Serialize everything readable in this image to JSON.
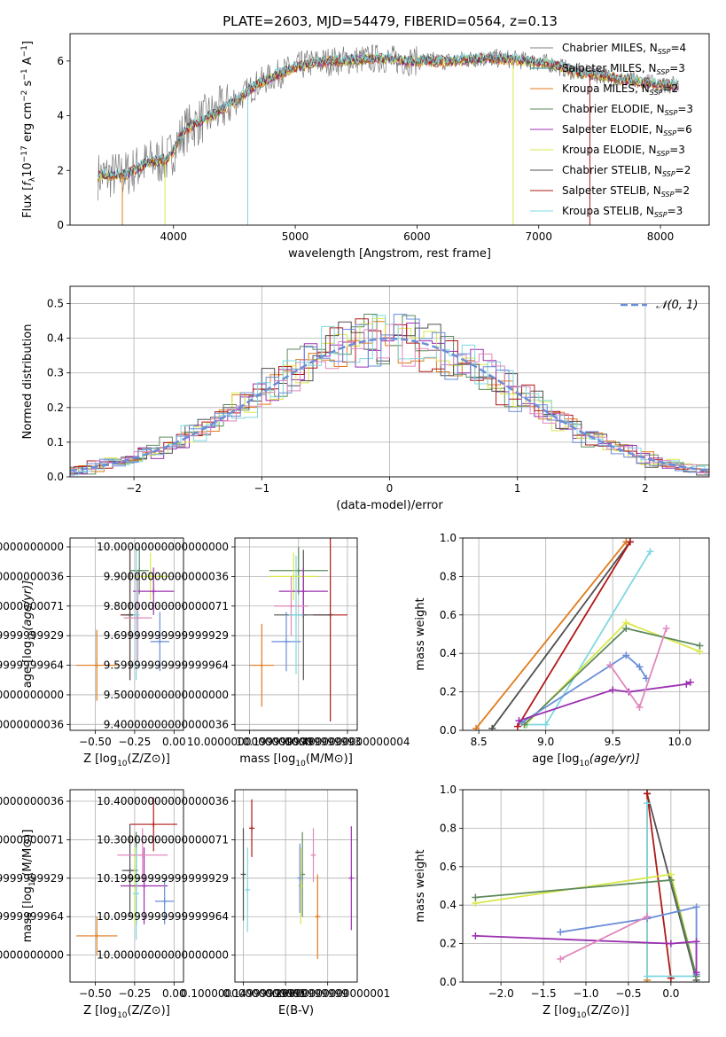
{
  "figure": {
    "title": "PLATE=2603, MJD=54479, FIBERID=0564, z=0.13"
  },
  "series_colors": {
    "Chabrier MILES": "#808080",
    "Salpeter MILES": "#2a8c8c",
    "Kroupa MILES": "#e07b1a",
    "Chabrier ELODIE": "#5f8a5f",
    "Salpeter ELODIE": "#9b30b0",
    "Kroupa ELODIE": "#d8e84a",
    "Chabrier STELIB": "#505050",
    "Salpeter STELIB": "#b01818",
    "Kroupa STELIB": "#7fd8e0",
    "extra_blue": "#6a8ed8",
    "extra_pink": "#e088bc",
    "gaussian": "#6a8ed8"
  },
  "chart_data": [
    {
      "id": "spectrum",
      "type": "line",
      "xlabel": "wavelength [Angstrom, rest frame]",
      "ylabel_parts": [
        "Flux [",
        "f",
        "λ",
        "10",
        "−17",
        " erg cm",
        "−2",
        " s",
        "−1",
        " A",
        "−1",
        "]"
      ],
      "xlim": [
        3150,
        8400
      ],
      "ylim": [
        0,
        7.0
      ],
      "xticks": [
        4000,
        5000,
        6000,
        7000,
        8000
      ],
      "yticks": [
        0,
        2,
        4,
        6
      ],
      "legend_loc": "upper right",
      "legend": [
        {
          "name": "Chabrier MILES",
          "sub": "SSP",
          "n": "4"
        },
        {
          "name": "Salpeter MILES",
          "sub": "SSP",
          "n": "3"
        },
        {
          "name": "Kroupa MILES",
          "sub": "SSP",
          "n": "2"
        },
        {
          "name": "Chabrier ELODIE",
          "sub": "SSP",
          "n": "3"
        },
        {
          "name": "Salpeter ELODIE",
          "sub": "SSP",
          "n": "6"
        },
        {
          "name": "Kroupa ELODIE",
          "sub": "SSP",
          "n": "3"
        },
        {
          "name": "Chabrier STELIB",
          "sub": "SSP",
          "n": "2"
        },
        {
          "name": "Salpeter STELIB",
          "sub": "SSP",
          "n": "2"
        },
        {
          "name": "Kroupa STELIB",
          "sub": "SSP",
          "n": "3"
        }
      ],
      "continuum": [
        [
          3380,
          1.8
        ],
        [
          3600,
          1.85
        ],
        [
          3800,
          2.3
        ],
        [
          3950,
          2.4
        ],
        [
          4100,
          3.5
        ],
        [
          4300,
          4.0
        ],
        [
          4500,
          4.5
        ],
        [
          4700,
          5.2
        ],
        [
          4900,
          5.6
        ],
        [
          5100,
          5.9
        ],
        [
          5300,
          6.0
        ],
        [
          5500,
          6.05
        ],
        [
          5700,
          6.1
        ],
        [
          5900,
          6.0
        ],
        [
          6100,
          6.0
        ],
        [
          6300,
          6.0
        ],
        [
          6500,
          6.1
        ],
        [
          6700,
          6.1
        ],
        [
          6900,
          6.0
        ],
        [
          7100,
          5.9
        ],
        [
          7300,
          5.6
        ],
        [
          7500,
          5.5
        ],
        [
          7700,
          5.3
        ],
        [
          7900,
          5.2
        ],
        [
          8150,
          5.1
        ]
      ]
    },
    {
      "id": "residuals",
      "type": "histogram",
      "xlabel": "(data-model)/error",
      "ylabel": "Normed distribution",
      "xlim": [
        -2.5,
        2.5
      ],
      "ylim": [
        0,
        0.55
      ],
      "xticks": [
        -2,
        -1,
        0,
        1,
        2
      ],
      "yticks": [
        0.0,
        0.1,
        0.2,
        0.3,
        0.4,
        0.5
      ],
      "legend_loc": "upper right",
      "legend": [
        "𝒩(0, 1)"
      ],
      "gaussian": {
        "mu": 0,
        "sigma": 1
      }
    },
    {
      "id": "z_age",
      "type": "errorbar",
      "xlabel": "Z [log10(Z/Z⊙)]",
      "ylabel": "age  [log10(age/yr)]",
      "xlim": [
        -0.66,
        0.06
      ],
      "ylim": [
        9.38,
        10.03
      ],
      "xticks": [
        -0.5,
        -0.25,
        0.0
      ],
      "yticks": [
        9.4,
        9.5,
        9.6,
        9.7,
        9.8,
        9.9,
        10.0
      ],
      "points": [
        {
          "x": -0.28,
          "y": 9.77,
          "xe": 0.06,
          "ye": 0.22,
          "c": "#b01818"
        },
        {
          "x": -0.28,
          "y": 9.77,
          "xe": 0.05,
          "ye": 0.22,
          "c": "#505050"
        },
        {
          "x": -0.49,
          "y": 9.6,
          "xe": 0.13,
          "ye": 0.12,
          "c": "#e07b1a"
        },
        {
          "x": -0.22,
          "y": 9.92,
          "xe": 0.06,
          "ye": 0.08,
          "c": "#5f8a5f"
        },
        {
          "x": -0.15,
          "y": 9.9,
          "xe": 0.11,
          "ye": 0.08,
          "c": "#d8e84a"
        },
        {
          "x": -0.13,
          "y": 9.85,
          "xe": 0.13,
          "ye": 0.08,
          "c": "#9b30b0"
        },
        {
          "x": -0.23,
          "y": 9.76,
          "xe": 0.09,
          "ye": 0.15,
          "c": "#e088bc"
        },
        {
          "x": -0.09,
          "y": 9.68,
          "xe": 0.06,
          "ye": 0.1,
          "c": "#6a8ed8"
        },
        {
          "x": -0.24,
          "y": 9.77,
          "xe": 0.02,
          "ye": 0.22,
          "c": "#7fd8e0"
        }
      ]
    },
    {
      "id": "mass_age",
      "type": "errorbar",
      "xlabel": "mass [log10(M/M⊙)]",
      "ylabel": "",
      "xlim": [
        9.94,
        10.44
      ],
      "ylim": [
        9.38,
        10.03
      ],
      "xticks": [
        10.0,
        10.2,
        10.4
      ],
      "yticks": [
        9.4,
        9.5,
        9.6,
        9.7,
        9.8,
        9.9,
        10.0
      ],
      "points": [
        {
          "x": 10.33,
          "y": 9.77,
          "xe": 0.07,
          "ye": 0.36,
          "c": "#b01818"
        },
        {
          "x": 10.22,
          "y": 9.77,
          "xe": 0.12,
          "ye": 0.22,
          "c": "#505050"
        },
        {
          "x": 10.05,
          "y": 9.6,
          "xe": 0.05,
          "ye": 0.14,
          "c": "#e07b1a"
        },
        {
          "x": 10.2,
          "y": 9.92,
          "xe": 0.12,
          "ye": 0.08,
          "c": "#5f8a5f"
        },
        {
          "x": 10.18,
          "y": 9.9,
          "xe": 0.1,
          "ye": 0.08,
          "c": "#d8e84a"
        },
        {
          "x": 10.22,
          "y": 9.85,
          "xe": 0.1,
          "ye": 0.08,
          "c": "#9b30b0"
        },
        {
          "x": 10.17,
          "y": 9.8,
          "xe": 0.07,
          "ye": 0.1,
          "c": "#e088bc"
        },
        {
          "x": 10.15,
          "y": 9.68,
          "xe": 0.06,
          "ye": 0.1,
          "c": "#6a8ed8"
        },
        {
          "x": 10.19,
          "y": 9.77,
          "xe": 0.03,
          "ye": 0.2,
          "c": "#7fd8e0"
        }
      ]
    },
    {
      "id": "age_weight",
      "type": "line",
      "xlabel": "age  [log10(age/yr)]",
      "ylabel": "mass weight",
      "xlim": [
        8.38,
        10.22
      ],
      "ylim": [
        0,
        1.0
      ],
      "xticks": [
        8.5,
        9.0,
        9.5,
        10.0
      ],
      "yticks": [
        0.0,
        0.2,
        0.4,
        0.6,
        0.8,
        1.0
      ],
      "series": [
        {
          "c": "#e07b1a",
          "pts": [
            [
              8.48,
              0.01
            ],
            [
              9.6,
              0.98
            ]
          ]
        },
        {
          "c": "#505050",
          "pts": [
            [
              8.6,
              0.01
            ],
            [
              9.63,
              0.98
            ]
          ]
        },
        {
          "c": "#b01818",
          "pts": [
            [
              8.79,
              0.02
            ],
            [
              9.63,
              0.98
            ]
          ]
        },
        {
          "c": "#7fd8e0",
          "pts": [
            [
              8.86,
              0.03
            ],
            [
              9.0,
              0.03
            ],
            [
              9.78,
              0.93
            ]
          ]
        },
        {
          "c": "#d8e84a",
          "pts": [
            [
              8.85,
              0.03
            ],
            [
              9.6,
              0.56
            ],
            [
              10.15,
              0.41
            ]
          ]
        },
        {
          "c": "#5f8a5f",
          "pts": [
            [
              8.84,
              0.03
            ],
            [
              9.6,
              0.53
            ],
            [
              10.15,
              0.44
            ]
          ]
        },
        {
          "c": "#6a8ed8",
          "pts": [
            [
              8.82,
              0.04
            ],
            [
              9.6,
              0.39
            ],
            [
              9.7,
              0.33
            ],
            [
              9.75,
              0.27
            ]
          ]
        },
        {
          "c": "#9b30b0",
          "pts": [
            [
              8.8,
              0.05
            ],
            [
              9.5,
              0.21
            ],
            [
              9.62,
              0.2
            ],
            [
              10.05,
              0.24
            ],
            [
              10.08,
              0.25
            ]
          ]
        },
        {
          "c": "#e088bc",
          "pts": [
            [
              9.48,
              0.34
            ],
            [
              9.7,
              0.12
            ],
            [
              9.9,
              0.53
            ]
          ]
        }
      ]
    },
    {
      "id": "z_mass",
      "type": "errorbar",
      "xlabel": "Z [log10(Z/Z⊙)]",
      "ylabel": "mass [log10(M/M⊙)]",
      "xlim": [
        -0.66,
        0.06
      ],
      "ylim": [
        9.93,
        10.43
      ],
      "xticks": [
        -0.5,
        -0.25,
        0.0
      ],
      "yticks": [
        10.0,
        10.1,
        10.2,
        10.3,
        10.4
      ],
      "points": [
        {
          "x": -0.13,
          "y": 10.34,
          "xe": 0.15,
          "ye": 0.07,
          "c": "#b01818"
        },
        {
          "x": -0.28,
          "y": 10.22,
          "xe": 0.05,
          "ye": 0.12,
          "c": "#505050"
        },
        {
          "x": -0.49,
          "y": 10.05,
          "xe": 0.13,
          "ye": 0.05,
          "c": "#e07b1a"
        },
        {
          "x": -0.24,
          "y": 10.2,
          "xe": 0.06,
          "ye": 0.12,
          "c": "#5f8a5f"
        },
        {
          "x": -0.25,
          "y": 10.18,
          "xe": 0.05,
          "ye": 0.1,
          "c": "#d8e84a"
        },
        {
          "x": -0.19,
          "y": 10.18,
          "xe": 0.15,
          "ye": 0.1,
          "c": "#9b30b0"
        },
        {
          "x": -0.2,
          "y": 10.26,
          "xe": 0.16,
          "ye": 0.07,
          "c": "#e088bc"
        },
        {
          "x": -0.06,
          "y": 10.14,
          "xe": 0.06,
          "ye": 0.06,
          "c": "#6a8ed8"
        },
        {
          "x": -0.24,
          "y": 10.16,
          "xe": 0.02,
          "ye": 0.12,
          "c": "#7fd8e0"
        }
      ]
    },
    {
      "id": "ebv_mass",
      "type": "errorbar",
      "xlabel": "E(B-V)",
      "ylabel": "",
      "xlim": [
        0.09,
        0.235
      ],
      "ylim": [
        9.93,
        10.43
      ],
      "xticks": [
        0.1,
        0.15,
        0.2
      ],
      "yticks": [
        10.0,
        10.1,
        10.2,
        10.3,
        10.4
      ],
      "points": [
        {
          "x": 0.11,
          "y": 10.33,
          "xe": 0,
          "ye": 0.075,
          "c": "#b01818"
        },
        {
          "x": 0.1,
          "y": 10.21,
          "xe": 0,
          "ye": 0.12,
          "c": "#505050"
        },
        {
          "x": 0.188,
          "y": 10.1,
          "xe": 0,
          "ye": 0.11,
          "c": "#e07b1a"
        },
        {
          "x": 0.17,
          "y": 10.21,
          "xe": 0,
          "ye": 0.11,
          "c": "#5f8a5f"
        },
        {
          "x": 0.168,
          "y": 10.18,
          "xe": 0,
          "ye": 0.1,
          "c": "#d8e84a"
        },
        {
          "x": 0.228,
          "y": 10.2,
          "xe": 0,
          "ye": 0.135,
          "c": "#9b30b0"
        },
        {
          "x": 0.183,
          "y": 10.26,
          "xe": 0,
          "ye": 0.07,
          "c": "#e088bc"
        },
        {
          "x": 0.167,
          "y": 10.2,
          "xe": 0,
          "ye": 0.09,
          "c": "#6a8ed8"
        },
        {
          "x": 0.105,
          "y": 10.17,
          "xe": 0,
          "ye": 0.11,
          "c": "#7fd8e0"
        }
      ]
    },
    {
      "id": "z_weight",
      "type": "line",
      "xlabel": "Z [log10(Z/Z⊙)]",
      "ylabel": "mass weight",
      "xlim": [
        -2.45,
        0.45
      ],
      "ylim": [
        0,
        1.0
      ],
      "xticks": [
        -2.0,
        -1.5,
        -1.0,
        -0.5,
        0.0
      ],
      "yticks": [
        0.0,
        0.2,
        0.4,
        0.6,
        0.8,
        1.0
      ],
      "series": [
        {
          "c": "#e07b1a",
          "pts": [
            [
              -0.28,
              0.98
            ],
            [
              -0.28,
              0.01
            ]
          ]
        },
        {
          "c": "#505050",
          "pts": [
            [
              -0.28,
              0.98
            ],
            [
              0.3,
              0.01
            ]
          ]
        },
        {
          "c": "#b01818",
          "pts": [
            [
              -0.28,
              0.98
            ],
            [
              0.0,
              0.02
            ]
          ]
        },
        {
          "c": "#7fd8e0",
          "pts": [
            [
              -0.28,
              0.93
            ],
            [
              -0.28,
              0.03
            ],
            [
              0.3,
              0.03
            ]
          ]
        },
        {
          "c": "#d8e84a",
          "pts": [
            [
              -2.3,
              0.41
            ],
            [
              0.0,
              0.56
            ],
            [
              0.3,
              0.03
            ]
          ]
        },
        {
          "c": "#5f8a5f",
          "pts": [
            [
              -2.3,
              0.44
            ],
            [
              0.0,
              0.53
            ],
            [
              0.3,
              0.03
            ]
          ]
        },
        {
          "c": "#6a8ed8",
          "pts": [
            [
              -1.3,
              0.26
            ],
            [
              -0.28,
              0.33
            ],
            [
              0.3,
              0.39
            ],
            [
              0.3,
              0.04
            ]
          ]
        },
        {
          "c": "#9b30b0",
          "pts": [
            [
              -2.3,
              0.24
            ],
            [
              0.0,
              0.2
            ],
            [
              0.3,
              0.21
            ],
            [
              0.3,
              0.05
            ]
          ]
        },
        {
          "c": "#e088bc",
          "pts": [
            [
              -1.3,
              0.12
            ],
            [
              -0.28,
              0.34
            ]
          ]
        }
      ]
    }
  ]
}
